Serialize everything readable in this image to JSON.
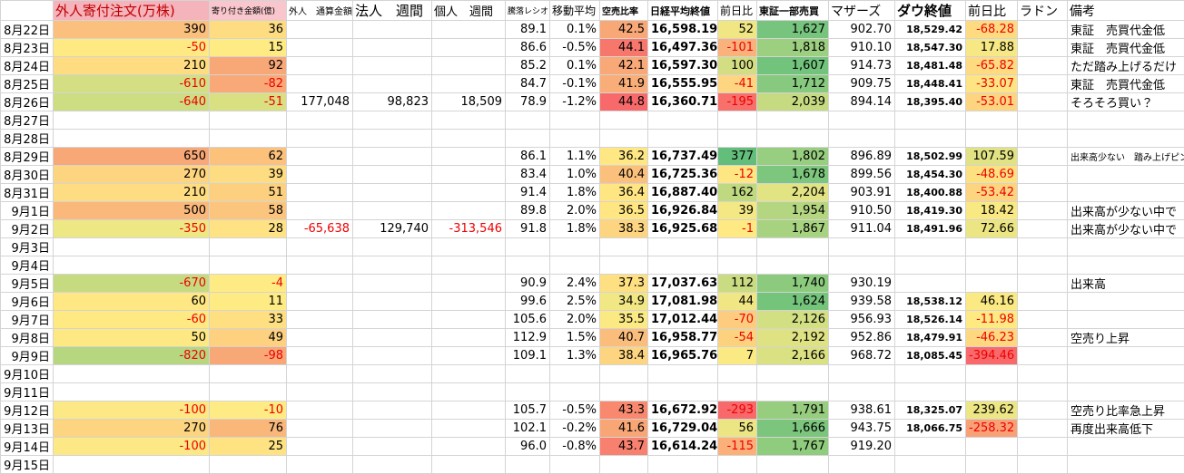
{
  "table": {
    "header": [
      null,
      "外人寄付注文(万株)",
      "寄り付き金額(億)",
      "外人　通算金額",
      "法人　週間",
      "個人　週間",
      "騰落レシオ",
      "移動平均",
      "空売比率",
      "日経平均終値",
      "前日比",
      "東証一部売買",
      "マザーズ",
      "ダウ終値",
      "前日比",
      "ラドン",
      "備考"
    ],
    "header_fills": [
      null,
      "#f5b3bb",
      "#f8c6cc",
      null,
      null,
      null,
      null,
      null,
      null,
      null,
      null,
      null,
      null,
      null,
      null,
      null,
      null
    ],
    "rows": [
      [
        "8月22日",
        "390",
        "36",
        null,
        null,
        null,
        "89.1",
        "0.1%",
        "42.5",
        "16,598.19",
        "52",
        "1,627",
        "902.70",
        "18,529.42",
        "-68.28",
        null,
        "東証　売買代金低"
      ],
      [
        "8月23日",
        "-50",
        "15",
        null,
        null,
        null,
        "86.6",
        "-0.5%",
        "44.1",
        "16,497.36",
        "-101",
        "1,818",
        "910.10",
        "18,547.30",
        "17.88",
        null,
        "東証　売買代金低"
      ],
      [
        "8月24日",
        "210",
        "92",
        null,
        null,
        null,
        "85.2",
        "0.1%",
        "42.1",
        "16,597.30",
        "100",
        "1,607",
        "914.73",
        "18,481.48",
        "-65.82",
        null,
        "ただ踏み上げるだけ"
      ],
      [
        "8月25日",
        "-610",
        "-82",
        null,
        null,
        null,
        "84.7",
        "-0.1%",
        "41.9",
        "16,555.95",
        "-41",
        "1,712",
        "909.75",
        "18,448.41",
        "-33.07",
        null,
        "東証　売買代金低"
      ],
      [
        "8月26日",
        "-640",
        "-51",
        "177,048",
        "98,823",
        "18,509",
        "78.9",
        "-1.2%",
        "44.8",
        "16,360.71",
        "-195",
        "2,039",
        "894.14",
        "18,395.40",
        "-53.01",
        null,
        "そろそろ買い？"
      ],
      [
        "8月27日",
        null,
        null,
        null,
        null,
        null,
        null,
        null,
        null,
        null,
        null,
        null,
        null,
        null,
        null,
        null,
        null
      ],
      [
        "8月28日",
        null,
        null,
        null,
        null,
        null,
        null,
        null,
        null,
        null,
        null,
        null,
        null,
        null,
        null,
        null,
        null
      ],
      [
        "8月29日",
        "650",
        "62",
        null,
        null,
        null,
        "86.1",
        "1.1%",
        "36.2",
        "16,737.49",
        "377",
        "1,802",
        "896.89",
        "18,502.99",
        "107.59",
        null,
        "出来高少ない　踏み上げピン"
      ],
      [
        "8月30日",
        "270",
        "39",
        null,
        null,
        null,
        "83.4",
        "1.0%",
        "40.4",
        "16,725.36",
        "-12",
        "1,678",
        "899.56",
        "18,454.30",
        "-48.69",
        null,
        null
      ],
      [
        "8月31日",
        "210",
        "51",
        null,
        null,
        null,
        "91.4",
        "1.8%",
        "36.4",
        "16,887.40",
        "162",
        "2,204",
        "903.91",
        "18,400.88",
        "-53.42",
        null,
        null
      ],
      [
        "9月1日",
        "500",
        "58",
        null,
        null,
        null,
        "89.8",
        "2.0%",
        "36.5",
        "16,926.84",
        "39",
        "1,954",
        "910.50",
        "18,419.30",
        "18.42",
        null,
        "出来高が少ない中で"
      ],
      [
        "9月2日",
        "-350",
        "28",
        "-65,638",
        "129,740",
        "-313,546",
        "91.8",
        "1.8%",
        "38.3",
        "16,925.68",
        "-1",
        "1,867",
        "911.04",
        "18,491.96",
        "72.66",
        null,
        "出来高が少ない中で"
      ],
      [
        "9月3日",
        null,
        null,
        null,
        null,
        null,
        null,
        null,
        null,
        null,
        null,
        null,
        null,
        null,
        null,
        null,
        null
      ],
      [
        "9月4日",
        null,
        null,
        null,
        null,
        null,
        null,
        null,
        null,
        null,
        null,
        null,
        null,
        null,
        null,
        null,
        null
      ],
      [
        "9月5日",
        "-670",
        "-4",
        null,
        null,
        null,
        "90.9",
        "2.4%",
        "37.3",
        "17,037.63",
        "112",
        "1,740",
        "930.19",
        null,
        null,
        null,
        "出来高"
      ],
      [
        "9月6日",
        "60",
        "11",
        null,
        null,
        null,
        "99.6",
        "2.5%",
        "34.9",
        "17,081.98",
        "44",
        "1,624",
        "939.58",
        "18,538.12",
        "46.16",
        null,
        null
      ],
      [
        "9月7日",
        "-60",
        "33",
        null,
        null,
        null,
        "105.6",
        "2.0%",
        "35.5",
        "17,012.44",
        "-70",
        "2,126",
        "956.93",
        "18,526.14",
        "-11.98",
        null,
        null
      ],
      [
        "9月8日",
        "50",
        "49",
        null,
        null,
        null,
        "112.9",
        "1.5%",
        "40.7",
        "16,958.77",
        "-54",
        "2,192",
        "952.86",
        "18,479.91",
        "-46.23",
        null,
        "空売り上昇"
      ],
      [
        "9月9日",
        "-820",
        "-98",
        null,
        null,
        null,
        "109.1",
        "1.3%",
        "38.4",
        "16,965.76",
        "7",
        "2,166",
        "968.72",
        "18,085.45",
        "-394.46",
        null,
        null
      ],
      [
        "9月10日",
        null,
        null,
        null,
        null,
        null,
        null,
        null,
        null,
        null,
        null,
        null,
        null,
        null,
        null,
        null,
        null
      ],
      [
        "9月11日",
        null,
        null,
        null,
        null,
        null,
        null,
        null,
        null,
        null,
        null,
        null,
        null,
        null,
        null,
        null,
        null
      ],
      [
        "9月12日",
        "-100",
        "-10",
        null,
        null,
        null,
        "105.7",
        "-0.5%",
        "43.3",
        "16,672.92",
        "-293",
        "1,791",
        "938.61",
        "18,325.07",
        "239.62",
        null,
        "空売り比率急上昇"
      ],
      [
        "9月13日",
        "270",
        "76",
        null,
        null,
        null,
        "102.1",
        "-0.2%",
        "41.6",
        "16,729.04",
        "56",
        "1,666",
        "943.75",
        "18,066.75",
        "-258.32",
        null,
        "再度出来高低下"
      ],
      [
        "9月14日",
        "-100",
        "25",
        null,
        null,
        null,
        "96.0",
        "-0.8%",
        "43.7",
        "16,614.24",
        "-115",
        "1,767",
        "919.20",
        null,
        null,
        null,
        null
      ],
      [
        "9月15日",
        null,
        null,
        null,
        null,
        null,
        null,
        null,
        null,
        null,
        null,
        null,
        null,
        null,
        null,
        null,
        null
      ]
    ],
    "fills": [
      [
        null,
        "#fbc07e",
        "#fedc81",
        null,
        null,
        null,
        null,
        null,
        "#f8a777",
        null,
        "#f0e784",
        "#76c47d",
        null,
        null,
        "#fedb81",
        null,
        null
      ],
      [
        null,
        "#fee983",
        "#ffeb84",
        null,
        null,
        null,
        null,
        null,
        "#f8776d",
        null,
        "#f9b27b",
        "#9ccf7f",
        null,
        null,
        "#f6e884",
        null,
        null
      ],
      [
        null,
        "#fedc81",
        "#f8a777",
        null,
        null,
        null,
        null,
        null,
        "#f9a877",
        null,
        "#d3de82",
        "#72c37c",
        null,
        null,
        "#feda81",
        null,
        null
      ],
      [
        null,
        "#d3df82",
        "#f9a877",
        null,
        null,
        null,
        null,
        null,
        "#f9ad78",
        null,
        "#fed580",
        "#87c97e",
        null,
        null,
        "#fee482",
        null,
        null
      ],
      [
        null,
        "#cddd82",
        "#d8e082",
        null,
        null,
        null,
        null,
        null,
        "#f8696b",
        null,
        "#f8706c",
        "#c6db81",
        null,
        null,
        "#fdd480",
        null,
        null
      ],
      [
        null,
        null,
        null,
        null,
        null,
        null,
        null,
        null,
        null,
        null,
        null,
        null,
        null,
        null,
        null,
        null,
        null
      ],
      [
        null,
        null,
        null,
        null,
        null,
        null,
        null,
        null,
        null,
        null,
        null,
        null,
        null,
        null,
        null,
        null,
        null
      ],
      [
        null,
        "#f8a877",
        "#fcc27c",
        null,
        null,
        null,
        null,
        null,
        "#ffe884",
        null,
        "#63be7b",
        "#98ce7f",
        null,
        null,
        "#e1e283",
        null,
        null
      ],
      [
        null,
        "#fdd47f",
        "#fedc81",
        null,
        null,
        null,
        null,
        null,
        "#fbc17c",
        null,
        "#fee683",
        "#7dc67d",
        null,
        null,
        "#fde080",
        null,
        null
      ],
      [
        null,
        "#fedc81",
        "#fdd07f",
        null,
        null,
        null,
        null,
        null,
        "#ffe683",
        null,
        "#bfd980",
        "#e2e383",
        null,
        null,
        "#fdd47f",
        null,
        null
      ],
      [
        null,
        "#fab87a",
        "#fcc57d",
        null,
        null,
        null,
        null,
        null,
        "#ffe683",
        null,
        "#f3e884",
        "#b5d680",
        null,
        null,
        "#f9e983",
        null,
        null
      ],
      [
        null,
        "#ede784",
        "#ffe283",
        null,
        null,
        null,
        null,
        null,
        "#fdd580",
        null,
        "#fee983",
        "#a7d27f",
        null,
        null,
        "#ece584",
        null,
        null
      ],
      [
        null,
        null,
        null,
        null,
        null,
        null,
        null,
        null,
        null,
        null,
        null,
        null,
        null,
        null,
        null,
        null,
        null
      ],
      [
        null,
        null,
        null,
        null,
        null,
        null,
        null,
        null,
        null,
        null,
        null,
        null,
        null,
        null,
        null,
        null,
        null
      ],
      [
        null,
        "#c6db80",
        "#ffeb84",
        null,
        null,
        null,
        null,
        null,
        "#fee082",
        null,
        "#cadc81",
        "#8ccb7e",
        null,
        null,
        null,
        null,
        null
      ],
      [
        null,
        "#ffe884",
        "#ffeb84",
        null,
        null,
        null,
        null,
        null,
        "#f1e784",
        null,
        "#f0e784",
        "#75c47c",
        null,
        null,
        "#fbe983",
        null,
        null
      ],
      [
        null,
        "#fee983",
        "#fee082",
        null,
        null,
        null,
        null,
        null,
        "#fbe983",
        null,
        "#fdcc7e",
        "#d2df82",
        null,
        null,
        "#fee983",
        null,
        null
      ],
      [
        null,
        "#fee884",
        "#fdd17f",
        null,
        null,
        null,
        null,
        null,
        "#fbbd7b",
        null,
        "#fdd27f",
        "#dfe283",
        null,
        null,
        "#fdd880",
        null,
        null
      ],
      [
        null,
        "#b6d680",
        "#f8a777",
        null,
        null,
        null,
        null,
        null,
        "#fdd47f",
        null,
        "#fbe983",
        "#dae182",
        null,
        null,
        "#f8696b",
        null,
        null
      ],
      [
        null,
        null,
        null,
        null,
        null,
        null,
        null,
        null,
        null,
        null,
        null,
        null,
        null,
        null,
        null,
        null,
        null
      ],
      [
        null,
        null,
        null,
        null,
        null,
        null,
        null,
        null,
        null,
        null,
        null,
        null,
        null,
        null,
        null,
        null,
        null
      ],
      [
        null,
        "#fce884",
        "#ffeb84",
        null,
        null,
        null,
        null,
        null,
        "#f8896f",
        null,
        "#f8696b",
        "#96cd7e",
        null,
        null,
        "#ede684",
        null,
        null
      ],
      [
        null,
        "#fdd47f",
        "#fab77a",
        null,
        null,
        null,
        null,
        null,
        "#f9a677",
        null,
        "#ece584",
        "#7bc57d",
        null,
        null,
        "#f9a176",
        null,
        null
      ],
      [
        null,
        "#fce884",
        "#ffe383",
        null,
        null,
        null,
        null,
        null,
        "#f8806e",
        null,
        "#fbb07a",
        "#90cc7e",
        null,
        null,
        null,
        null,
        null
      ],
      [
        null,
        null,
        null,
        null,
        null,
        null,
        null,
        null,
        null,
        null,
        null,
        null,
        null,
        null,
        null,
        null,
        null
      ]
    ]
  }
}
